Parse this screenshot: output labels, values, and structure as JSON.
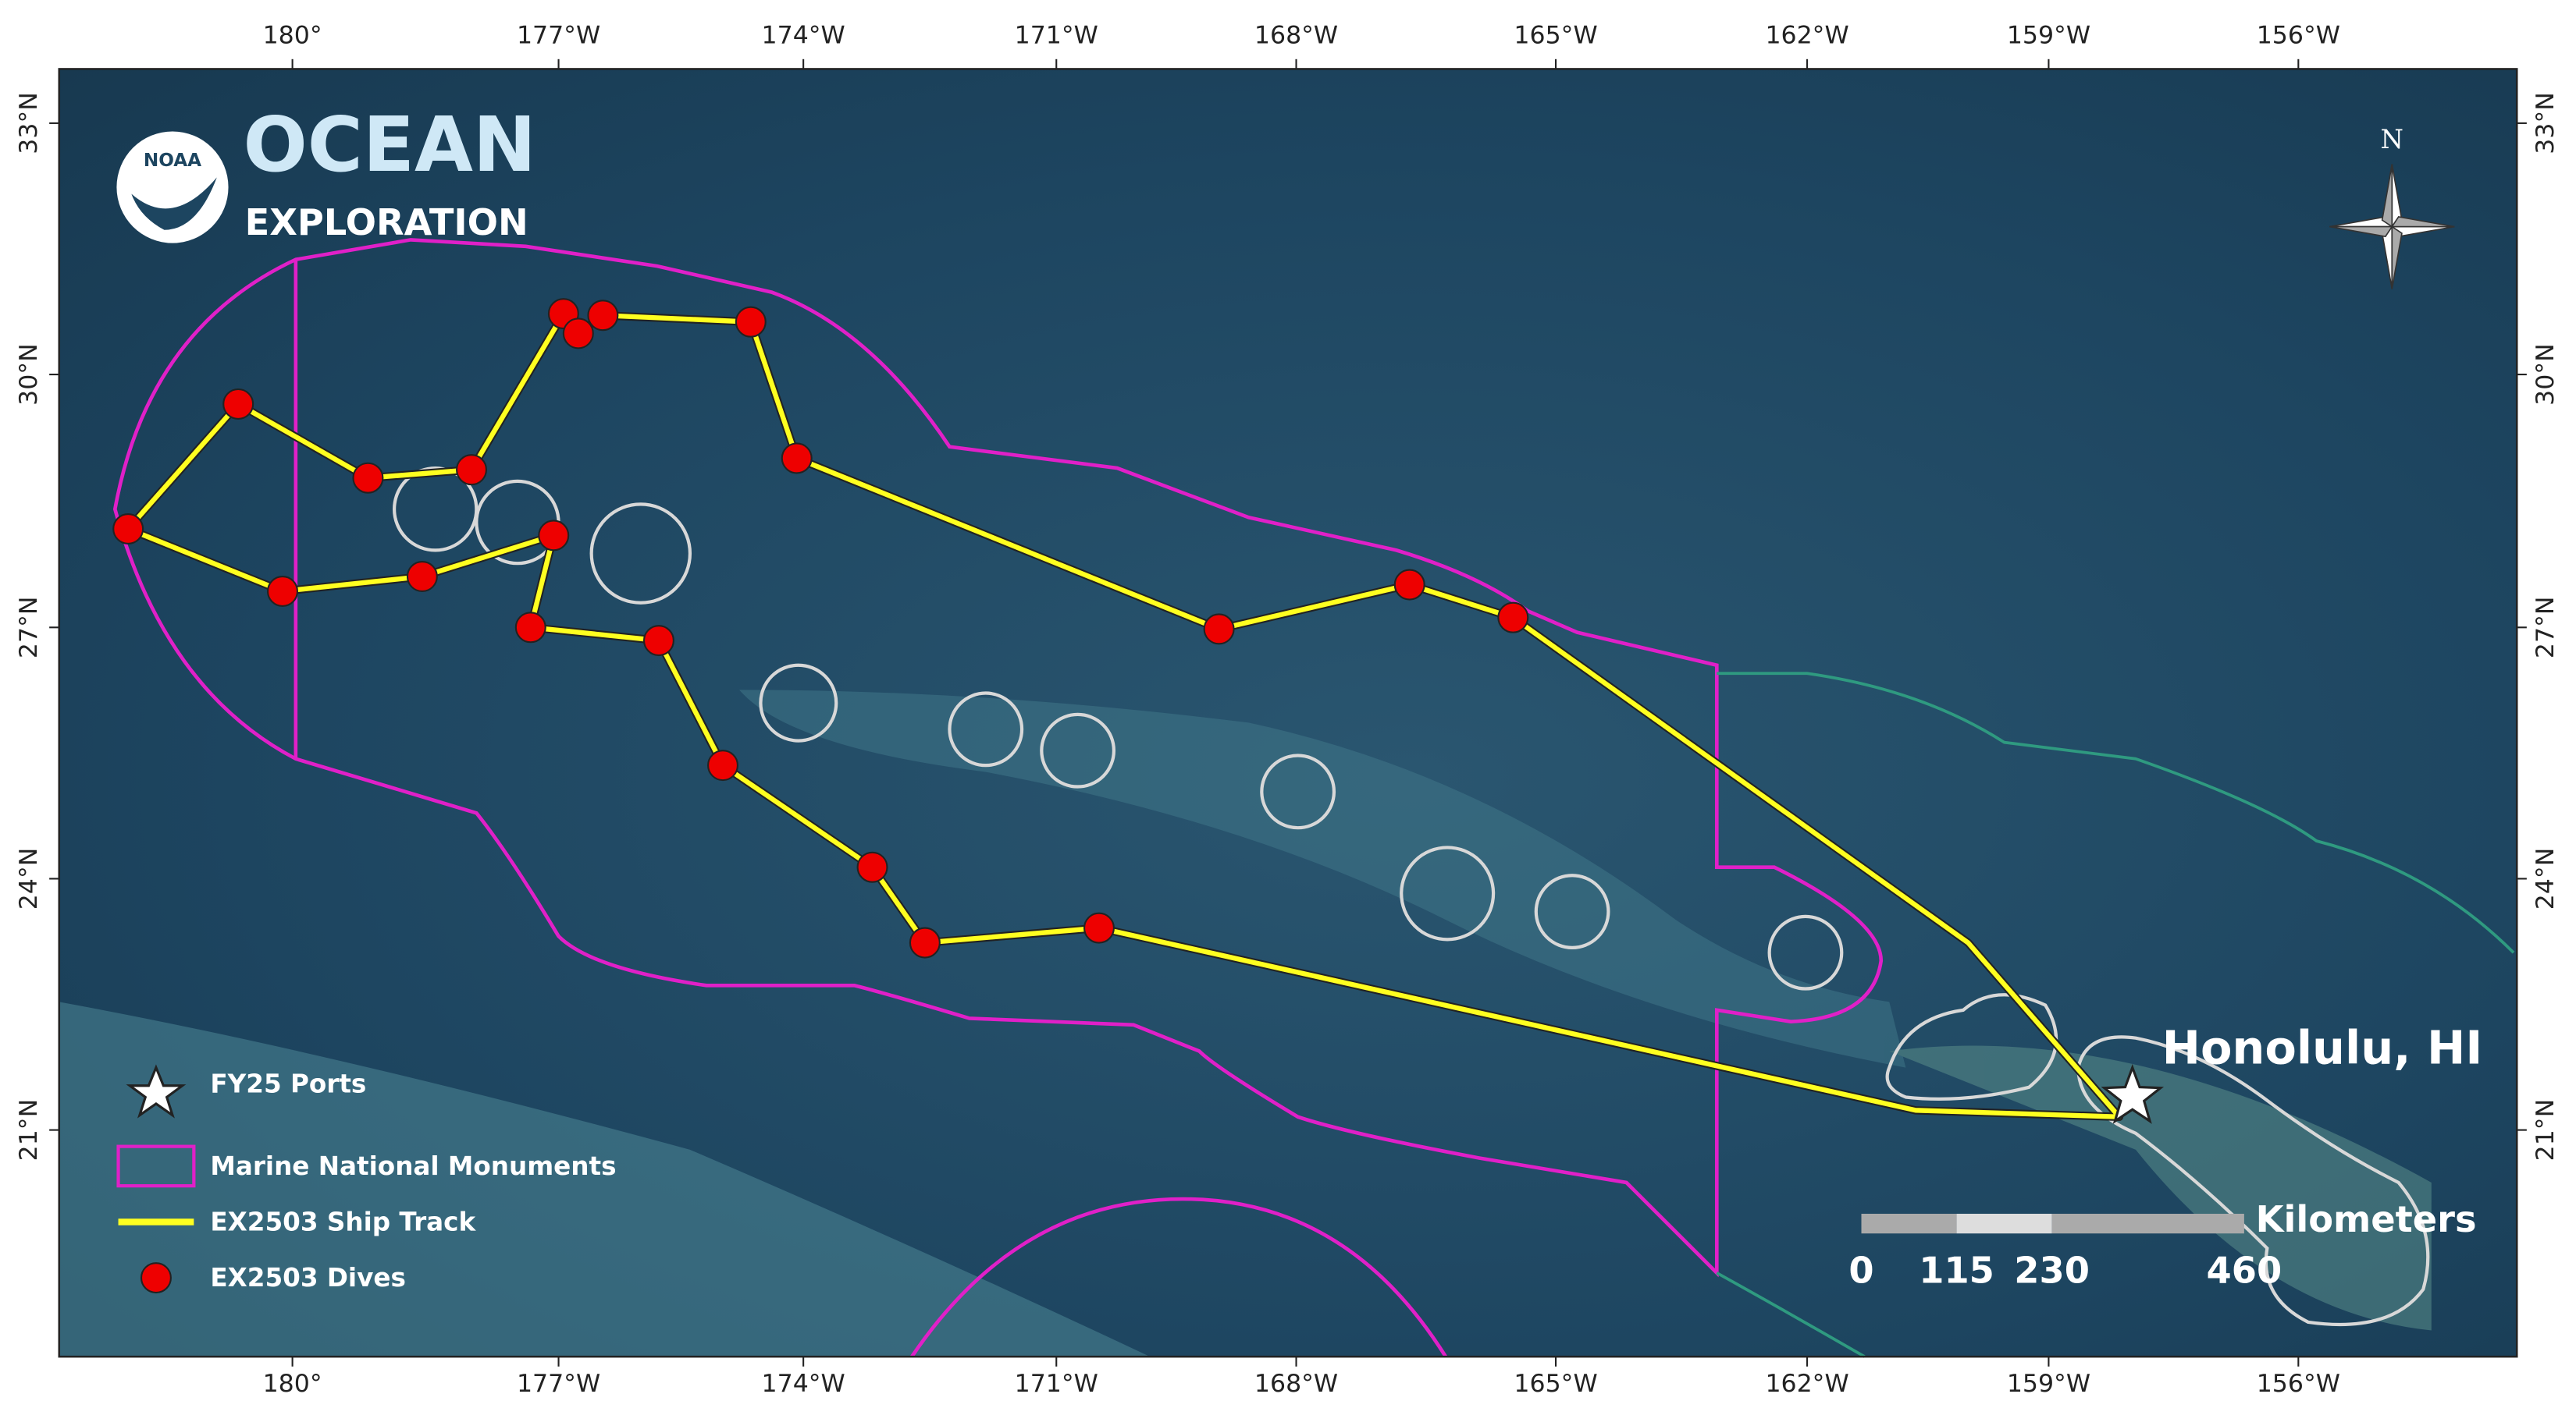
{
  "logo": {
    "badge": "NOAA",
    "title": "OCEAN",
    "subtitle": "EXPLORATION"
  },
  "compass": "N",
  "axes": {
    "longitude": [
      "180°",
      "177°W",
      "174°W",
      "171°W",
      "168°W",
      "165°W",
      "162°W",
      "159°W",
      "156°W"
    ],
    "latitude": [
      "33°N",
      "30°N",
      "27°N",
      "24°N",
      "21°N"
    ]
  },
  "place_label": "Honolulu, HI",
  "legend": [
    "FY25 Ports",
    "Marine National Monuments",
    "EX2503 Ship Track",
    "EX2503 Dives"
  ],
  "scale_bar": {
    "unit": "Kilometers",
    "labels": [
      "0",
      "115",
      "230",
      "460"
    ]
  }
}
